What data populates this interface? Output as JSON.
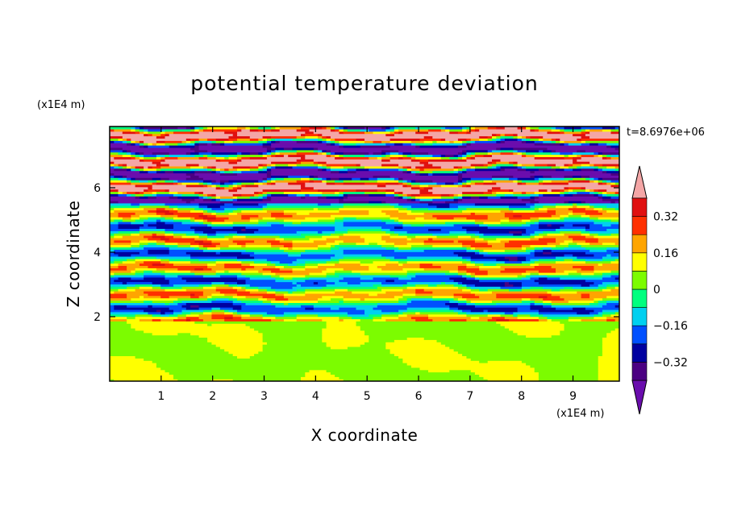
{
  "chart_data": {
    "type": "heatmap",
    "title": "potential temperature deviation",
    "xlabel": "X coordinate",
    "ylabel": "Z coordinate",
    "x_unit": "(x1E4 m)",
    "y_unit": "(x1E4 m)",
    "time_label": "t=8.6976e+06",
    "xlim": [
      0,
      9.9
    ],
    "ylim": [
      0,
      7.9
    ],
    "x_ticks": [
      1,
      2,
      3,
      4,
      5,
      6,
      7,
      8,
      9
    ],
    "x_tick_labels": [
      "1",
      "2",
      "3",
      "4",
      "5",
      "6",
      "7",
      "8",
      "9"
    ],
    "y_ticks": [
      2,
      4,
      6
    ],
    "y_tick_labels": [
      "2",
      "4",
      "6"
    ],
    "colorbar": {
      "levels": [
        -0.4,
        -0.32,
        -0.24,
        -0.16,
        -0.08,
        0,
        0.08,
        0.16,
        0.24,
        0.32,
        0.4
      ],
      "colors": [
        "#4b0082",
        "#0000a0",
        "#0050ff",
        "#00d0f0",
        "#00ff7f",
        "#7cfc00",
        "#ffff00",
        "#ffa500",
        "#ff3000",
        "#e01010"
      ],
      "under_color": "#6a0dad",
      "over_color": "#f4a6a6",
      "tick_values": [
        0.32,
        0.16,
        0,
        -0.16,
        -0.32
      ],
      "tick_labels": [
        "0.32",
        "0.16",
        "0",
        "−0.16",
        "−0.32"
      ]
    },
    "regions": [
      {
        "z_range": [
          0,
          1.9
        ],
        "description": "near-neutral layer, values between 0 and 0.08"
      },
      {
        "z_range": [
          1.9,
          5.5
        ],
        "description": "layered alternating positive and negative bands, magnitude up to 0.4"
      },
      {
        "z_range": [
          5.5,
          7.9
        ],
        "description": "strong alternating bands, beyond +0.4 and below -0.4"
      }
    ]
  }
}
